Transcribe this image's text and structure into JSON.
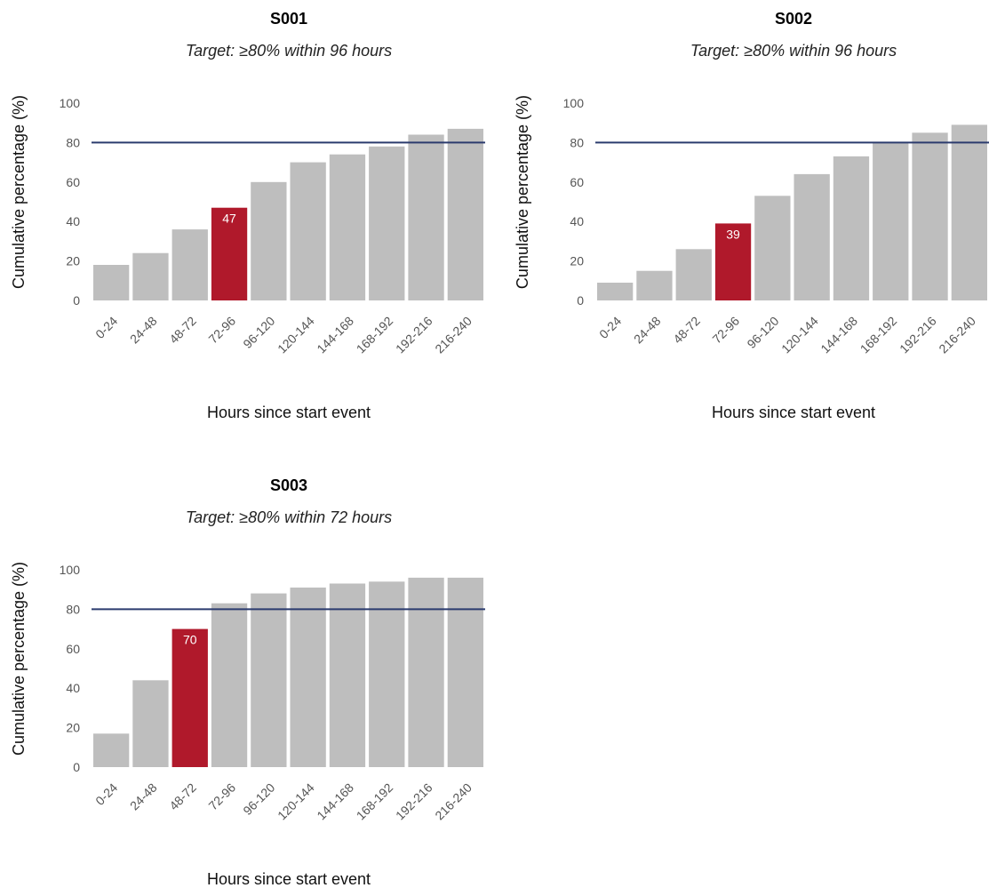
{
  "colors": {
    "bar_default": "#bebebe",
    "bar_highlight": "#b0192b",
    "target_line": "#2b3b6e",
    "bar_label_text": "#ffffff"
  },
  "chart_data": [
    {
      "type": "bar",
      "title": "S001",
      "subtitle": "Target:  ≥80% within 96 hours",
      "xlabel": "Hours since start event",
      "ylabel": "Cumulative percentage (%)",
      "ylim": [
        0,
        100
      ],
      "yticks": [
        0,
        20,
        40,
        60,
        80,
        100
      ],
      "categories": [
        "0-24",
        "24-48",
        "48-72",
        "72-96",
        "96-120",
        "120-144",
        "144-168",
        "168-192",
        "192-216",
        "216-240"
      ],
      "values": [
        18,
        24,
        36,
        47,
        60,
        70,
        74,
        78,
        84,
        87
      ],
      "highlight_index": 3,
      "highlight_label": "47",
      "target_value": 80,
      "grid": false
    },
    {
      "type": "bar",
      "title": "S002",
      "subtitle": "Target:  ≥80% within 96 hours",
      "xlabel": "Hours since start event",
      "ylabel": "Cumulative percentage (%)",
      "ylim": [
        0,
        100
      ],
      "yticks": [
        0,
        20,
        40,
        60,
        80,
        100
      ],
      "categories": [
        "0-24",
        "24-48",
        "48-72",
        "72-96",
        "96-120",
        "120-144",
        "144-168",
        "168-192",
        "192-216",
        "216-240"
      ],
      "values": [
        9,
        15,
        26,
        39,
        53,
        64,
        73,
        80,
        85,
        89
      ],
      "highlight_index": 3,
      "highlight_label": "39",
      "target_value": 80,
      "grid": false
    },
    {
      "type": "bar",
      "title": "S003",
      "subtitle": "Target:  ≥80% within 72 hours",
      "xlabel": "Hours since start event",
      "ylabel": "Cumulative percentage (%)",
      "ylim": [
        0,
        100
      ],
      "yticks": [
        0,
        20,
        40,
        60,
        80,
        100
      ],
      "categories": [
        "0-24",
        "24-48",
        "48-72",
        "72-96",
        "96-120",
        "120-144",
        "144-168",
        "168-192",
        "192-216",
        "216-240"
      ],
      "values": [
        17,
        44,
        70,
        83,
        88,
        91,
        93,
        94,
        96,
        96
      ],
      "highlight_index": 2,
      "highlight_label": "70",
      "target_value": 80,
      "grid": false
    }
  ]
}
